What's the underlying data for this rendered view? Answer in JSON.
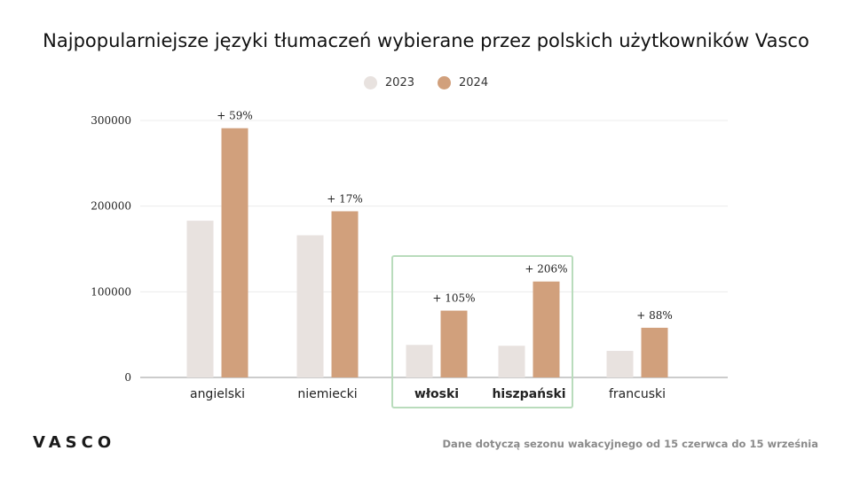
{
  "title": "Najpopularniejsze języki tłumaczeń wybierane przez polskich użytkowników Vasco",
  "logo": "VASCO",
  "footnote": "Dane dotyczą sezonu wakacyjnego od 15 czerwca do 15 września",
  "colors": {
    "series_2023": "#e8e2df",
    "series_2024": "#d1a07c",
    "grid": "#ececec",
    "highlight_box": "#b9dcbc"
  },
  "chart_data": {
    "type": "bar",
    "categories": [
      "angielski",
      "niemiecki",
      "włoski",
      "hiszpański",
      "francuski"
    ],
    "highlighted_categories": [
      "włoski",
      "hiszpański"
    ],
    "series": [
      {
        "name": "2023",
        "values": [
          183000,
          166000,
          38000,
          37000,
          31000
        ]
      },
      {
        "name": "2024",
        "values": [
          291000,
          194000,
          78000,
          112000,
          58000
        ]
      }
    ],
    "data_labels": [
      "+ 59%",
      "+ 17%",
      "+ 105%",
      "+ 206%",
      "+ 88%"
    ],
    "yticks": [
      0,
      100000,
      200000,
      300000
    ],
    "ylim": [
      0,
      300000
    ],
    "grid": true,
    "legend": "top-center",
    "xlabel": "",
    "ylabel": ""
  }
}
